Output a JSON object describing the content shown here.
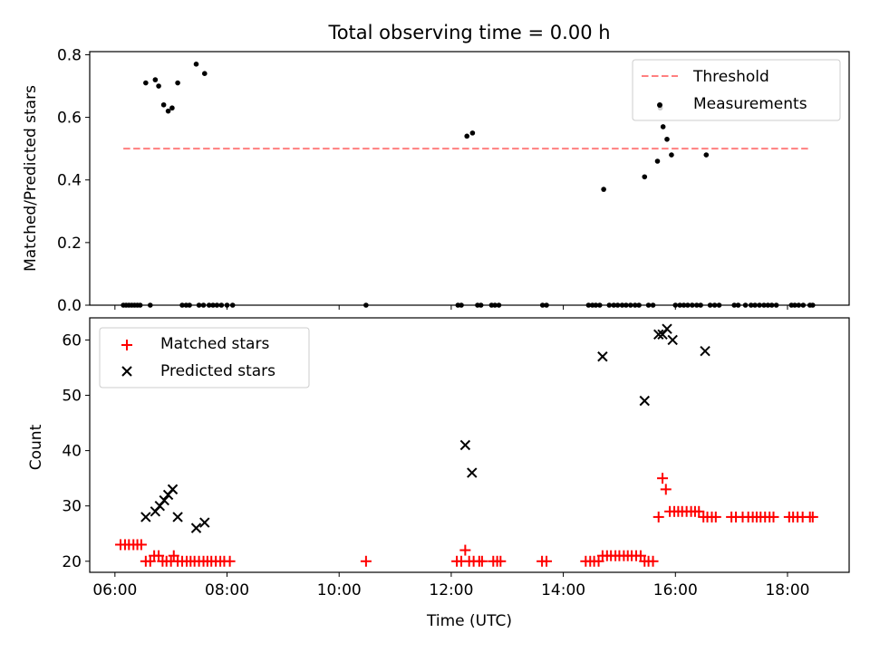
{
  "chart_data": [
    {
      "type": "scatter",
      "title": "Total observing time = 0.00 h",
      "xlabel": "",
      "ylabel": "Matched/Predicted stars",
      "xlim": [
        5.55,
        19.1
      ],
      "ylim": [
        0,
        0.81
      ],
      "x_ticks": [
        6,
        8,
        10,
        12,
        14,
        16,
        18
      ],
      "y_ticks": [
        0.0,
        0.2,
        0.4,
        0.6,
        0.8
      ],
      "y_tick_labels": [
        "0.0",
        "0.2",
        "0.4",
        "0.6",
        "0.8"
      ],
      "legend_location": "upper right",
      "series": [
        {
          "name": "Threshold",
          "kind": "dashed-line",
          "color": "#ff7f7f",
          "points": [
            [
              6.15,
              0.5
            ],
            [
              18.4,
              0.5
            ]
          ]
        },
        {
          "name": "Measurements",
          "kind": "dot",
          "color": "#000000",
          "points": [
            [
              6.15,
              0
            ],
            [
              6.2,
              0
            ],
            [
              6.25,
              0
            ],
            [
              6.3,
              0
            ],
            [
              6.35,
              0
            ],
            [
              6.4,
              0
            ],
            [
              6.45,
              0
            ],
            [
              6.63,
              0
            ],
            [
              6.55,
              0.71
            ],
            [
              6.72,
              0.72
            ],
            [
              6.78,
              0.7
            ],
            [
              6.87,
              0.64
            ],
            [
              6.95,
              0.62
            ],
            [
              7.02,
              0.63
            ],
            [
              7.12,
              0.71
            ],
            [
              7.45,
              0.77
            ],
            [
              7.6,
              0.74
            ],
            [
              7.2,
              0
            ],
            [
              7.27,
              0
            ],
            [
              7.33,
              0
            ],
            [
              7.5,
              0
            ],
            [
              7.58,
              0
            ],
            [
              7.68,
              0
            ],
            [
              7.75,
              0
            ],
            [
              7.82,
              0
            ],
            [
              7.9,
              0
            ],
            [
              8.0,
              0
            ],
            [
              8.1,
              0
            ],
            [
              10.48,
              0
            ],
            [
              12.12,
              0
            ],
            [
              12.18,
              0
            ],
            [
              12.28,
              0.54
            ],
            [
              12.38,
              0.55
            ],
            [
              12.47,
              0
            ],
            [
              12.53,
              0
            ],
            [
              12.72,
              0
            ],
            [
              12.78,
              0
            ],
            [
              12.85,
              0
            ],
            [
              13.63,
              0
            ],
            [
              13.7,
              0
            ],
            [
              14.45,
              0
            ],
            [
              14.52,
              0
            ],
            [
              14.58,
              0
            ],
            [
              14.65,
              0
            ],
            [
              14.72,
              0.37
            ],
            [
              14.82,
              0
            ],
            [
              14.9,
              0
            ],
            [
              14.97,
              0
            ],
            [
              15.05,
              0
            ],
            [
              15.12,
              0
            ],
            [
              15.2,
              0
            ],
            [
              15.28,
              0
            ],
            [
              15.35,
              0
            ],
            [
              15.45,
              0.41
            ],
            [
              15.52,
              0
            ],
            [
              15.6,
              0
            ],
            [
              15.68,
              0.46
            ],
            [
              15.73,
              0.63
            ],
            [
              15.78,
              0.57
            ],
            [
              15.85,
              0.53
            ],
            [
              15.93,
              0.48
            ],
            [
              16.0,
              0
            ],
            [
              16.08,
              0
            ],
            [
              16.15,
              0
            ],
            [
              16.22,
              0
            ],
            [
              16.3,
              0
            ],
            [
              16.38,
              0
            ],
            [
              16.45,
              0
            ],
            [
              16.55,
              0.48
            ],
            [
              16.62,
              0
            ],
            [
              16.7,
              0
            ],
            [
              16.78,
              0
            ],
            [
              17.05,
              0
            ],
            [
              17.12,
              0
            ],
            [
              17.25,
              0
            ],
            [
              17.35,
              0
            ],
            [
              17.42,
              0
            ],
            [
              17.5,
              0
            ],
            [
              17.58,
              0
            ],
            [
              17.65,
              0
            ],
            [
              17.72,
              0
            ],
            [
              17.8,
              0
            ],
            [
              18.07,
              0
            ],
            [
              18.13,
              0
            ],
            [
              18.2,
              0
            ],
            [
              18.28,
              0
            ],
            [
              18.4,
              0
            ],
            [
              18.45,
              0
            ]
          ]
        }
      ]
    },
    {
      "type": "scatter",
      "title": "",
      "xlabel": "Time (UTC)",
      "ylabel": "Count",
      "xlim": [
        5.55,
        19.1
      ],
      "ylim": [
        18,
        64
      ],
      "x_ticks": [
        6,
        8,
        10,
        12,
        14,
        16,
        18
      ],
      "x_tick_labels": [
        "06:00",
        "08:00",
        "10:00",
        "12:00",
        "14:00",
        "16:00",
        "18:00"
      ],
      "y_ticks": [
        20,
        30,
        40,
        50,
        60
      ],
      "y_tick_labels": [
        "20",
        "30",
        "40",
        "50",
        "60"
      ],
      "legend_location": "upper left",
      "series": [
        {
          "name": "Matched stars",
          "kind": "plus",
          "color": "#ff0000",
          "points": [
            [
              6.1,
              23
            ],
            [
              6.18,
              23
            ],
            [
              6.25,
              23
            ],
            [
              6.33,
              23
            ],
            [
              6.4,
              23
            ],
            [
              6.47,
              23
            ],
            [
              6.55,
              20
            ],
            [
              6.63,
              20
            ],
            [
              6.7,
              21
            ],
            [
              6.78,
              21
            ],
            [
              6.85,
              20
            ],
            [
              6.92,
              20
            ],
            [
              7.0,
              20
            ],
            [
              7.05,
              21
            ],
            [
              7.12,
              20
            ],
            [
              7.2,
              20
            ],
            [
              7.28,
              20
            ],
            [
              7.35,
              20
            ],
            [
              7.42,
              20
            ],
            [
              7.5,
              20
            ],
            [
              7.58,
              20
            ],
            [
              7.65,
              20
            ],
            [
              7.72,
              20
            ],
            [
              7.8,
              20
            ],
            [
              7.88,
              20
            ],
            [
              7.95,
              20
            ],
            [
              8.05,
              20
            ],
            [
              10.48,
              20
            ],
            [
              12.1,
              20
            ],
            [
              12.18,
              20
            ],
            [
              12.25,
              22
            ],
            [
              12.32,
              20
            ],
            [
              12.4,
              20
            ],
            [
              12.5,
              20
            ],
            [
              12.55,
              20
            ],
            [
              12.75,
              20
            ],
            [
              12.82,
              20
            ],
            [
              12.88,
              20
            ],
            [
              13.62,
              20
            ],
            [
              13.7,
              20
            ],
            [
              14.4,
              20
            ],
            [
              14.48,
              20
            ],
            [
              14.55,
              20
            ],
            [
              14.63,
              20
            ],
            [
              14.7,
              21
            ],
            [
              14.78,
              21
            ],
            [
              14.85,
              21
            ],
            [
              14.93,
              21
            ],
            [
              15.0,
              21
            ],
            [
              15.08,
              21
            ],
            [
              15.15,
              21
            ],
            [
              15.22,
              21
            ],
            [
              15.3,
              21
            ],
            [
              15.38,
              21
            ],
            [
              15.45,
              20
            ],
            [
              15.52,
              20
            ],
            [
              15.6,
              20
            ],
            [
              15.7,
              28
            ],
            [
              15.77,
              35
            ],
            [
              15.83,
              33
            ],
            [
              15.9,
              29
            ],
            [
              15.98,
              29
            ],
            [
              16.05,
              29
            ],
            [
              16.12,
              29
            ],
            [
              16.2,
              29
            ],
            [
              16.28,
              29
            ],
            [
              16.35,
              29
            ],
            [
              16.42,
              29
            ],
            [
              16.5,
              28
            ],
            [
              16.57,
              28
            ],
            [
              16.65,
              28
            ],
            [
              16.72,
              28
            ],
            [
              17.0,
              28
            ],
            [
              17.08,
              28
            ],
            [
              17.2,
              28
            ],
            [
              17.3,
              28
            ],
            [
              17.38,
              28
            ],
            [
              17.45,
              28
            ],
            [
              17.52,
              28
            ],
            [
              17.6,
              28
            ],
            [
              17.68,
              28
            ],
            [
              17.75,
              28
            ],
            [
              18.03,
              28
            ],
            [
              18.1,
              28
            ],
            [
              18.18,
              28
            ],
            [
              18.27,
              28
            ],
            [
              18.4,
              28
            ],
            [
              18.45,
              28
            ]
          ]
        },
        {
          "name": "Predicted stars",
          "kind": "x",
          "color": "#000000",
          "points": [
            [
              6.55,
              28
            ],
            [
              6.72,
              29
            ],
            [
              6.8,
              30
            ],
            [
              6.88,
              31
            ],
            [
              6.95,
              32
            ],
            [
              7.03,
              33
            ],
            [
              7.12,
              28
            ],
            [
              7.45,
              26
            ],
            [
              7.6,
              27
            ],
            [
              12.25,
              41
            ],
            [
              12.37,
              36
            ],
            [
              14.7,
              57
            ],
            [
              15.45,
              49
            ],
            [
              15.7,
              61
            ],
            [
              15.77,
              61
            ],
            [
              15.85,
              62
            ],
            [
              15.95,
              60
            ],
            [
              16.53,
              58
            ]
          ]
        }
      ]
    }
  ]
}
